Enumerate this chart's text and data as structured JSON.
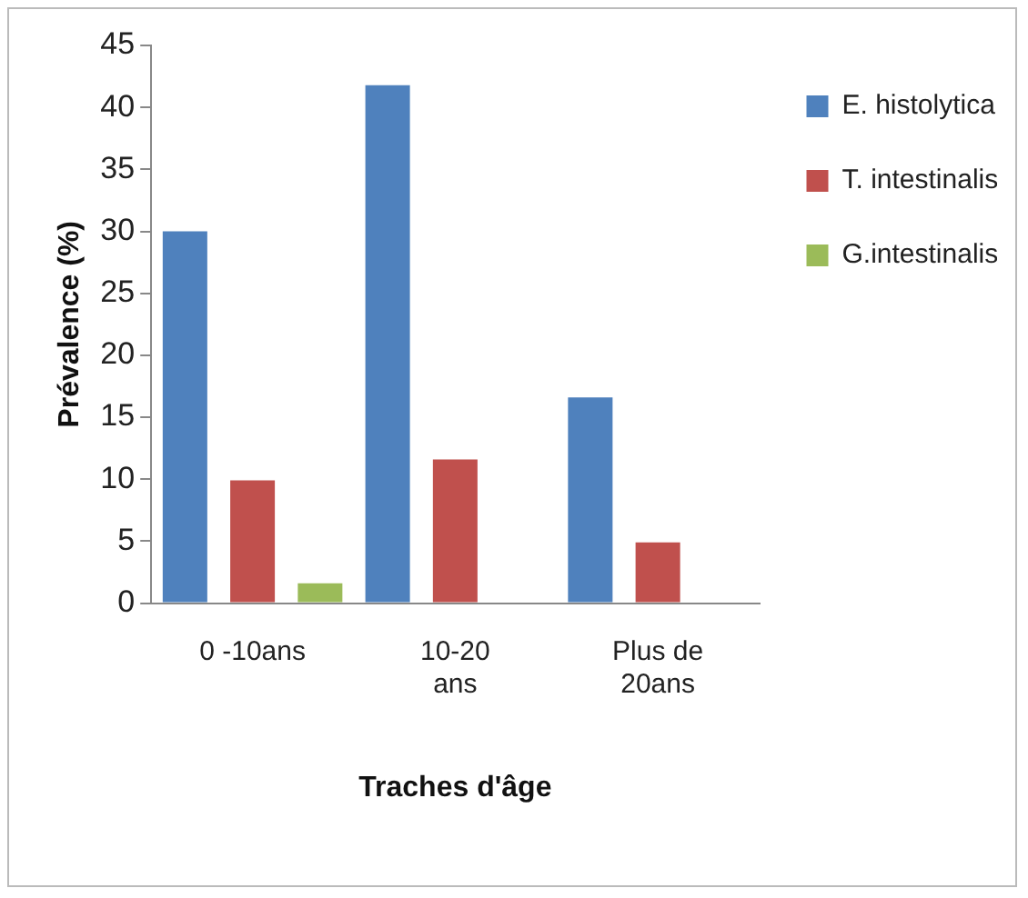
{
  "chart_data": {
    "type": "bar",
    "xlabel": "Traches d'âge",
    "ylabel": "Prévalence (%)",
    "categories": [
      "0 -10ans",
      "10-20\nans",
      "Plus de\n20ans"
    ],
    "series": [
      {
        "name": "E. histolytica",
        "color": "#4f81bd",
        "values": [
          30,
          41.8,
          16.6
        ]
      },
      {
        "name": "T. intestinalis",
        "color": "#c0504d",
        "values": [
          9.9,
          11.6,
          4.9
        ]
      },
      {
        "name": "G.intestinalis",
        "color": "#9bbb59",
        "values": [
          1.6,
          0,
          0
        ]
      }
    ],
    "ylim": [
      0,
      45
    ],
    "yticks": [
      0,
      5,
      10,
      15,
      20,
      25,
      30,
      35,
      40,
      45
    ],
    "grid": false,
    "legend": "right"
  }
}
